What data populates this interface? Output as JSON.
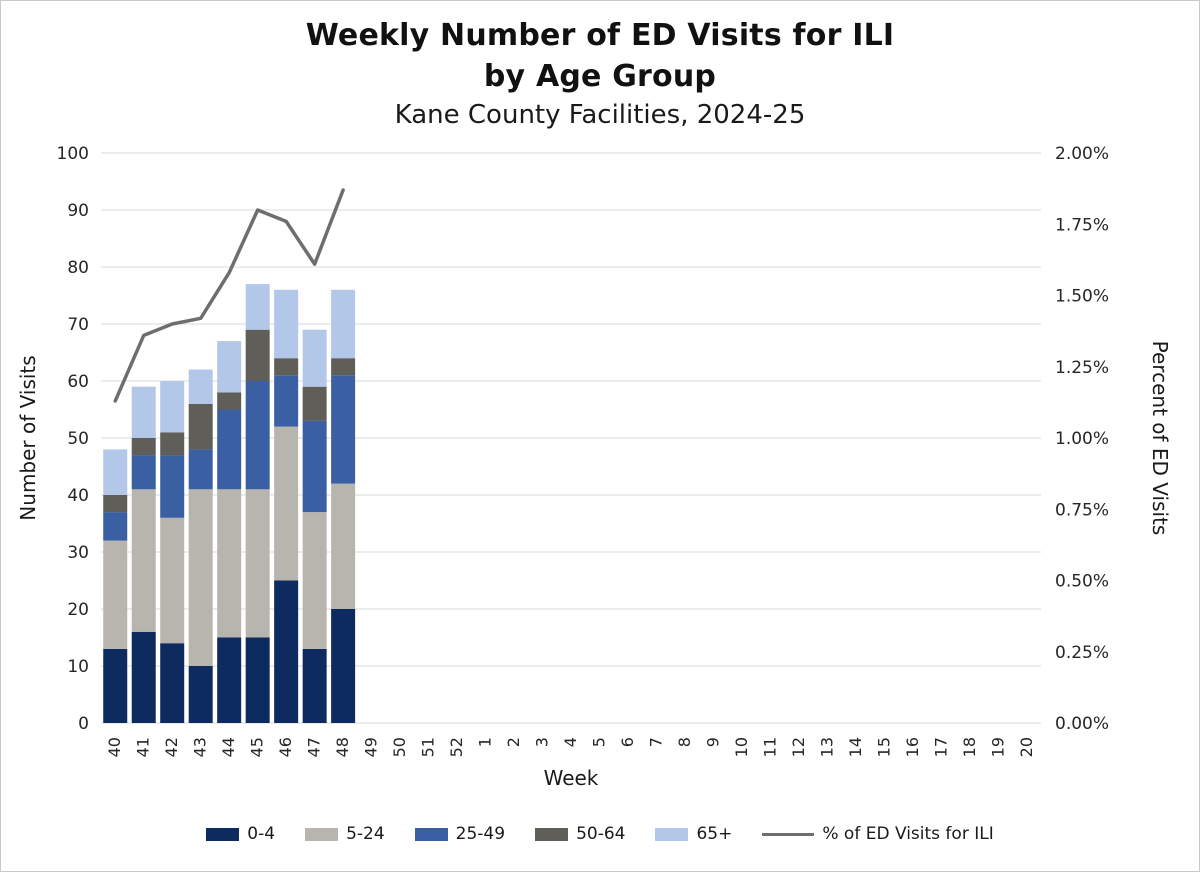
{
  "chart_data": {
    "type": "bar",
    "subtype": "stacked-bars-with-line-overlay",
    "title_line1": "Weekly Number of ED Visits for ILI",
    "title_line2": "by Age Group",
    "subtitle": "Kane County Facilities, 2024-25",
    "xlabel": "Week",
    "ylabel_left": "Number of Visits",
    "ylabel_right": "Percent of ED Visits",
    "y_left": {
      "min": 0,
      "max": 100,
      "step": 10
    },
    "y_right": {
      "min": 0,
      "max": 2.0,
      "step": 0.25,
      "format": "percent2"
    },
    "grid": true,
    "legend_position": "bottom",
    "categories": [
      "40",
      "41",
      "42",
      "43",
      "44",
      "45",
      "46",
      "47",
      "48",
      "49",
      "50",
      "51",
      "52",
      "1",
      "2",
      "3",
      "4",
      "5",
      "6",
      "7",
      "8",
      "9",
      "10",
      "11",
      "12",
      "13",
      "14",
      "15",
      "16",
      "17",
      "18",
      "19",
      "20"
    ],
    "series": [
      {
        "name": "0-4",
        "color": "#0d2b5e",
        "values": [
          13,
          16,
          14,
          10,
          15,
          15,
          25,
          13,
          20
        ]
      },
      {
        "name": "5-24",
        "color": "#b8b5ae",
        "values": [
          19,
          25,
          22,
          31,
          26,
          26,
          27,
          24,
          22
        ]
      },
      {
        "name": "25-49",
        "color": "#3b5fa3",
        "values": [
          5,
          6,
          11,
          7,
          14,
          19,
          9,
          16,
          19
        ]
      },
      {
        "name": "50-64",
        "color": "#5f5e59",
        "values": [
          3,
          3,
          4,
          8,
          3,
          9,
          3,
          6,
          3
        ]
      },
      {
        "name": "65+",
        "color": "#b3c7e8",
        "values": [
          8,
          9,
          9,
          6,
          9,
          8,
          12,
          10,
          12
        ]
      }
    ],
    "bar_totals": [
      48,
      59,
      60,
      62,
      67,
      77,
      76,
      69,
      76
    ],
    "line_series": {
      "name": "% of ED Visits for ILI",
      "color": "#6e6e6e",
      "values_percent": [
        1.13,
        1.36,
        1.4,
        1.42,
        1.58,
        1.8,
        1.76,
        1.61,
        1.87
      ]
    }
  }
}
